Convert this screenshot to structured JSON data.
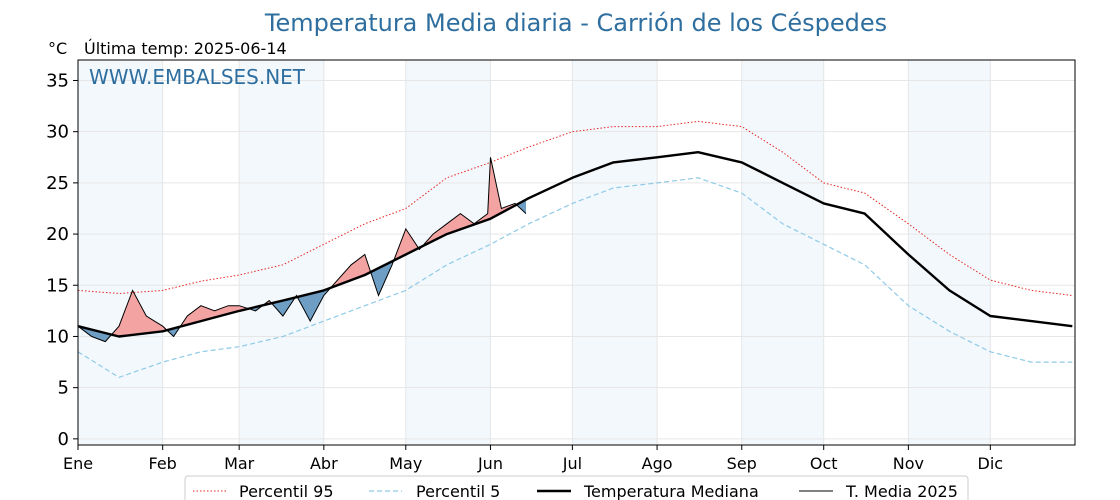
{
  "chart_data": {
    "type": "line",
    "title": "Temperatura Media diaria - Carrión de los Céspedes",
    "unit_label": "°C",
    "last_temp": "Última temp: 2025-06-14",
    "watermark": "WWW.EMBALSES.NET",
    "xlabel": "",
    "ylabel": "",
    "ylim": [
      -0.6,
      37
    ],
    "xlim": [
      0,
      365
    ],
    "grid": true,
    "legend_position": "bottom-center",
    "months": [
      "Ene",
      "Feb",
      "Mar",
      "Abr",
      "May",
      "Jun",
      "Jul",
      "Ago",
      "Sep",
      "Oct",
      "Nov",
      "Dic"
    ],
    "yticks": [
      0,
      5,
      10,
      15,
      20,
      25,
      30,
      35
    ],
    "colors": {
      "title": "#2f6f9f",
      "p95": "#e8251f",
      "p5": "#8ecae6",
      "median": "#000000",
      "current": "#000000",
      "above_fill": "#f4a3a3",
      "below_fill": "#6f9ec4",
      "band": "#f3f8fd",
      "grid": "#e6e6e6"
    },
    "curve_x": [
      0,
      15,
      31,
      45,
      59,
      75,
      90,
      105,
      120,
      135,
      151,
      165,
      181,
      196,
      212,
      227,
      243,
      258,
      273,
      288,
      304,
      319,
      334,
      349,
      364
    ],
    "series": [
      {
        "name": "Percentil 95",
        "style": "dotted",
        "values": [
          14.5,
          14.2,
          14.5,
          15.4,
          16.0,
          17.0,
          19.0,
          21.0,
          22.5,
          25.5,
          27.0,
          28.5,
          30.0,
          30.5,
          30.5,
          31.0,
          30.5,
          28.0,
          25.0,
          24.0,
          21.0,
          18.0,
          15.5,
          14.5,
          14.0
        ]
      },
      {
        "name": "Percentil 5",
        "style": "dashed",
        "values": [
          8.5,
          6.0,
          7.5,
          8.5,
          9.0,
          10.0,
          11.5,
          13.0,
          14.5,
          17.0,
          19.0,
          21.0,
          23.0,
          24.5,
          25.0,
          25.5,
          24.0,
          21.0,
          19.0,
          17.0,
          13.0,
          10.5,
          8.5,
          7.5,
          7.5
        ]
      },
      {
        "name": "Temperatura Mediana",
        "style": "solid-thick",
        "values": [
          11.0,
          10.0,
          10.5,
          11.5,
          12.5,
          13.5,
          14.5,
          16.0,
          18.0,
          20.0,
          21.5,
          23.5,
          25.5,
          27.0,
          27.5,
          28.0,
          27.0,
          25.0,
          23.0,
          22.0,
          18.0,
          14.5,
          12.0,
          11.5,
          11.0
        ]
      },
      {
        "name": "T. Media 2025",
        "style": "solid-thin",
        "x": [
          0,
          5,
          10,
          15,
          20,
          25,
          31,
          35,
          40,
          45,
          50,
          55,
          59,
          65,
          70,
          75,
          80,
          85,
          90,
          95,
          100,
          105,
          110,
          115,
          120,
          125,
          130,
          135,
          140,
          145,
          150,
          151,
          155,
          160,
          164
        ],
        "values": [
          11.0,
          10.0,
          9.5,
          11.0,
          14.5,
          12.0,
          11.0,
          10.0,
          12.0,
          13.0,
          12.5,
          13.0,
          13.0,
          12.5,
          13.5,
          12.0,
          14.0,
          11.5,
          14.0,
          15.5,
          17.0,
          18.0,
          14.0,
          17.0,
          20.5,
          18.5,
          20.0,
          21.0,
          22.0,
          21.0,
          22.0,
          27.5,
          22.5,
          23.0,
          22.0
        ]
      }
    ]
  }
}
